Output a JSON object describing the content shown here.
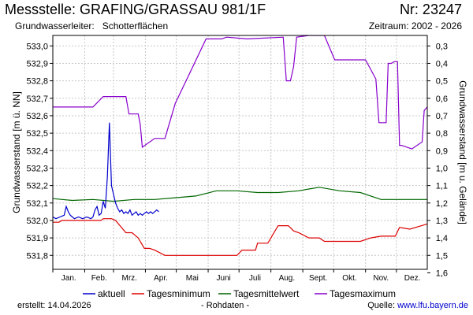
{
  "header": {
    "title": "Messstelle: GRAFING/GRASSAU 981/1F",
    "number": "Nr: 23247",
    "aquifer_label": "Grundwasserleiter:",
    "aquifer_value": "Schotterflächen",
    "period": "Zeitraum: 2002 - 2026"
  },
  "footer": {
    "created": "erstellt:  14.04.2026",
    "raw": "- Rohdaten -",
    "source_label": "Quelle: ",
    "source_url": "www.lfu.bayern.de"
  },
  "colors": {
    "aktuell": "#0000cc",
    "min": "#dd0000",
    "mean": "#006600",
    "max": "#8800cc",
    "grid": "#c8c8c8"
  },
  "chart_data": {
    "type": "line",
    "ylabel_left": "Grundwasserstand [m ü. NN]",
    "ylabel_right": "Grundwasserstand [m u. Gelände]",
    "ylim_left": [
      531.72,
      533.06
    ],
    "yticks_left": [
      531.8,
      531.9,
      532.0,
      532.1,
      532.2,
      532.3,
      532.4,
      532.5,
      532.6,
      532.7,
      532.8,
      532.9,
      533.0
    ],
    "ytick_labels_left": [
      "531,8",
      "531,9",
      "532,0",
      "532,1",
      "532,2",
      "532,3",
      "532,4",
      "532,5",
      "532,6",
      "532,7",
      "532,8",
      "532,9",
      "533,0"
    ],
    "yticks_right": [
      0.3,
      0.4,
      0.5,
      0.6,
      0.7,
      0.8,
      0.9,
      1.0,
      1.1,
      1.2,
      1.3,
      1.4,
      1.5,
      1.6
    ],
    "ytick_labels_right": [
      "0,3",
      "0,4",
      "0,5",
      "0,6",
      "0,7",
      "0,8",
      "0,9",
      "1,0",
      "1,1",
      "1,2",
      "1,3",
      "1,4",
      "1,5",
      "1,6"
    ],
    "months": [
      "Jan.",
      "Feb.",
      "Mrz.",
      "Apr.",
      "Mai",
      "Juni",
      "Juli",
      "Aug.",
      "Sept.",
      "Okt.",
      "Nov.",
      "Dez."
    ],
    "grid": true,
    "legend_position": "bottom",
    "series": [
      {
        "name": "aktuell",
        "key": "aktuell",
        "x": [
          1,
          4,
          8,
          12,
          14,
          16,
          18,
          20,
          22,
          26,
          30,
          34,
          38,
          40,
          42,
          44,
          46,
          48,
          50,
          52,
          54,
          56,
          58,
          60,
          62,
          64,
          66,
          68,
          70,
          72,
          74,
          76,
          78,
          80,
          82,
          84,
          86,
          88,
          90,
          92,
          94,
          96,
          98,
          100,
          102,
          104
        ],
        "y": [
          532.02,
          532.01,
          532.02,
          532.03,
          532.08,
          532.05,
          532.03,
          532.02,
          532.01,
          532.02,
          532.01,
          532.02,
          532.01,
          532.02,
          532.06,
          532.08,
          532.03,
          532.04,
          532.11,
          532.07,
          532.25,
          532.56,
          532.2,
          532.15,
          532.1,
          532.07,
          532.05,
          532.06,
          532.04,
          532.05,
          532.04,
          532.06,
          532.03,
          532.04,
          532.05,
          532.03,
          532.04,
          532.03,
          532.04,
          532.05,
          532.04,
          532.05,
          532.04,
          532.05,
          532.06,
          532.05
        ]
      },
      {
        "name": "Tagesminimum",
        "key": "min",
        "x": [
          1,
          7,
          10,
          25,
          40,
          48,
          50,
          58,
          62,
          72,
          73,
          78,
          80,
          82,
          84,
          90,
          95,
          100,
          110,
          125,
          140,
          150,
          160,
          170,
          180,
          185,
          188,
          190,
          198,
          200,
          210,
          220,
          230,
          235,
          240,
          250,
          260,
          265,
          268,
          275,
          290,
          300,
          310,
          320,
          334,
          338,
          348,
          365
        ],
        "y": [
          531.99,
          531.99,
          532.0,
          532.0,
          532.0,
          532.0,
          532.01,
          532.01,
          532.0,
          531.93,
          531.93,
          531.93,
          531.92,
          531.91,
          531.9,
          531.84,
          531.84,
          531.83,
          531.8,
          531.8,
          531.8,
          531.8,
          531.8,
          531.8,
          531.8,
          531.83,
          531.83,
          531.83,
          531.83,
          531.87,
          531.87,
          531.97,
          531.97,
          531.94,
          531.93,
          531.9,
          531.9,
          531.88,
          531.88,
          531.88,
          531.88,
          531.88,
          531.9,
          531.91,
          531.91,
          531.96,
          531.95,
          531.98
        ]
      },
      {
        "name": "Tagesmittelwert",
        "key": "mean",
        "x": [
          1,
          10,
          20,
          40,
          60,
          80,
          100,
          120,
          140,
          160,
          180,
          200,
          220,
          240,
          250,
          260,
          280,
          300,
          320,
          330,
          340,
          350,
          365
        ],
        "y": [
          532.125,
          532.12,
          532.115,
          532.12,
          532.11,
          532.12,
          532.12,
          532.13,
          532.14,
          532.17,
          532.17,
          532.16,
          532.16,
          532.17,
          532.18,
          532.19,
          532.17,
          532.16,
          532.12,
          532.12,
          532.12,
          532.12,
          532.12
        ]
      },
      {
        "name": "Tagesmaximum",
        "key": "max",
        "x": [
          1,
          15,
          28,
          40,
          50,
          65,
          72,
          75,
          78,
          82,
          84,
          86,
          88,
          100,
          110,
          120,
          150,
          160,
          165,
          170,
          190,
          225,
          228,
          232,
          235,
          238,
          250,
          265,
          275,
          305,
          315,
          318,
          325,
          327,
          330,
          333,
          336,
          338,
          340,
          350,
          360,
          362,
          365
        ],
        "y": [
          532.65,
          532.65,
          532.65,
          532.65,
          532.71,
          532.71,
          532.71,
          532.61,
          532.61,
          532.61,
          532.61,
          532.55,
          532.42,
          532.47,
          532.47,
          532.67,
          533.04,
          533.04,
          533.04,
          533.05,
          533.04,
          533.05,
          532.8,
          532.8,
          532.88,
          533.05,
          533.06,
          533.06,
          532.92,
          532.92,
          532.81,
          532.56,
          532.56,
          532.9,
          532.9,
          532.91,
          532.91,
          532.43,
          532.43,
          532.41,
          532.45,
          532.63,
          532.65
        ]
      }
    ]
  }
}
